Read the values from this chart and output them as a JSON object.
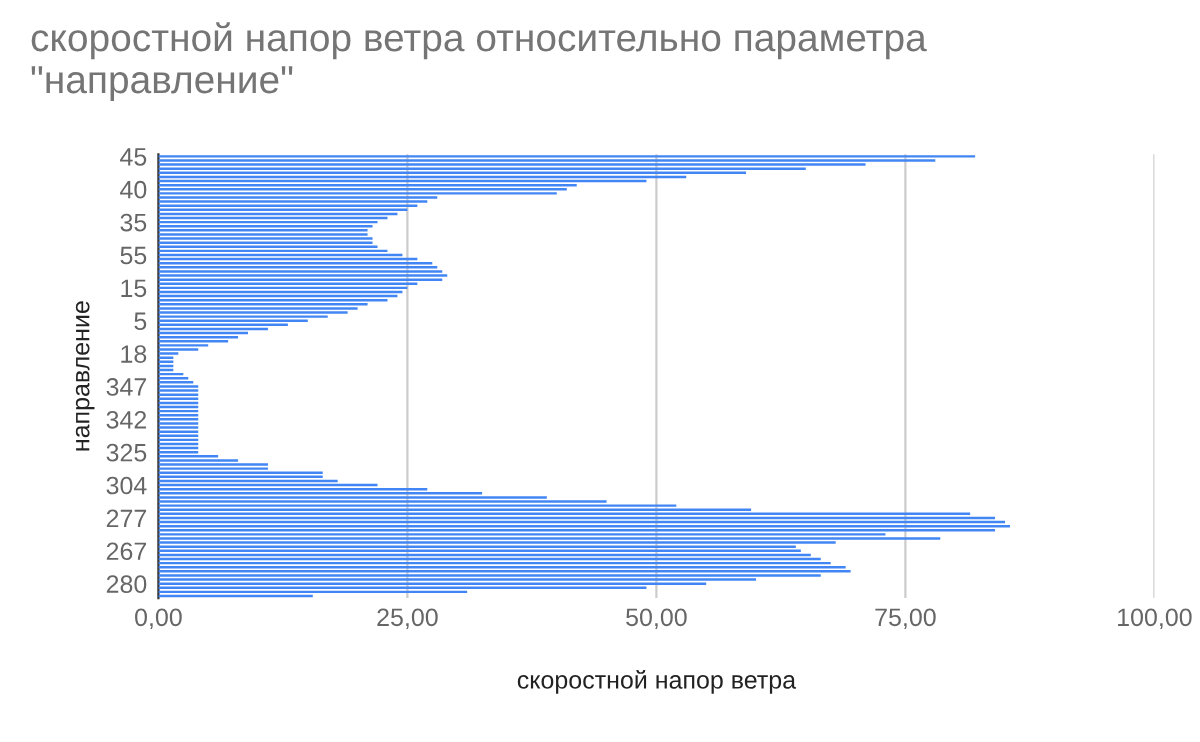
{
  "chart_data": {
    "type": "bar",
    "orientation": "horizontal",
    "title": "скоростной напор ветра относительно параметра \"направление\"",
    "xlabel": "скоростной напор ветра",
    "ylabel": "направление",
    "categories": [
      "45",
      null,
      null,
      null,
      null,
      null,
      null,
      null,
      "40",
      null,
      null,
      null,
      null,
      null,
      null,
      null,
      "35",
      null,
      null,
      null,
      null,
      null,
      null,
      null,
      "55",
      null,
      null,
      null,
      null,
      null,
      null,
      null,
      "15",
      null,
      null,
      null,
      null,
      null,
      null,
      null,
      "5",
      null,
      null,
      null,
      null,
      null,
      null,
      null,
      "18",
      null,
      null,
      null,
      null,
      null,
      null,
      null,
      "347",
      null,
      null,
      null,
      null,
      null,
      null,
      null,
      "342",
      null,
      null,
      null,
      null,
      null,
      null,
      null,
      "325",
      null,
      null,
      null,
      null,
      null,
      null,
      null,
      "304",
      null,
      null,
      null,
      null,
      null,
      null,
      null,
      "277",
      null,
      null,
      null,
      null,
      null,
      null,
      null,
      "267",
      null,
      null,
      null,
      null,
      null,
      null,
      null,
      "280",
      null,
      null,
      null
    ],
    "values": [
      82,
      78,
      71,
      65,
      59,
      53,
      49,
      42,
      41,
      40,
      28,
      27,
      26,
      25,
      24,
      23,
      22,
      21.5,
      21,
      21,
      21.5,
      21.5,
      22,
      23,
      24.5,
      26,
      27.5,
      28,
      28.5,
      29,
      28.5,
      26,
      25,
      24.5,
      24,
      23,
      21,
      20,
      19,
      17,
      15,
      13,
      11,
      9,
      8,
      7,
      5,
      4,
      2,
      1.5,
      1.5,
      1.5,
      1.5,
      2.5,
      3,
      3.5,
      4,
      4,
      4,
      4,
      4,
      4,
      4,
      4,
      4,
      4,
      4,
      4,
      4,
      4,
      4,
      4,
      4,
      6,
      8,
      11,
      11,
      16.5,
      16.5,
      18,
      22,
      27,
      32.5,
      39,
      45,
      52,
      59.5,
      81.5,
      84,
      85,
      85.5,
      84,
      73,
      78.5,
      68,
      64,
      64.5,
      65.5,
      66.5,
      67.5,
      69,
      69.5,
      66.5,
      60,
      55,
      49,
      31,
      15.5
    ],
    "color": "#4285f4",
    "xlim": [
      0,
      100
    ],
    "xticks": [
      {
        "value": 0,
        "label": "0,00"
      },
      {
        "value": 25,
        "label": "25,00"
      },
      {
        "value": 50,
        "label": "50,00"
      },
      {
        "value": 75,
        "label": "75,00"
      },
      {
        "value": 100,
        "label": "100,00"
      }
    ],
    "grid": "x"
  }
}
